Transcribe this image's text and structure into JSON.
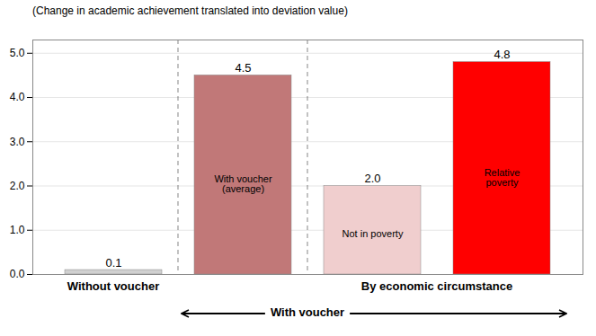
{
  "chart_data": {
    "type": "bar",
    "subtitle": "(Change in academic achievement translated into deviation value)",
    "categories": [
      null,
      "With voucher\n(average)",
      "Not in poverty",
      "Relative\npoverty"
    ],
    "values": [
      0.1,
      4.5,
      2.0,
      4.8
    ],
    "value_labels": [
      "0.1",
      "4.5",
      "2.0",
      "4.8"
    ],
    "colors": [
      "#d0d0d0",
      "#c17878",
      "#f0cece",
      "#ff0000"
    ],
    "data_labels": true,
    "ylim": [
      0,
      5.3
    ],
    "yticks": [
      0,
      1,
      2,
      3,
      4,
      5
    ],
    "grid": true,
    "tick_labels": "y",
    "annotations": [
      "Without voucher",
      "By economic circumstance",
      "With voucher"
    ]
  }
}
